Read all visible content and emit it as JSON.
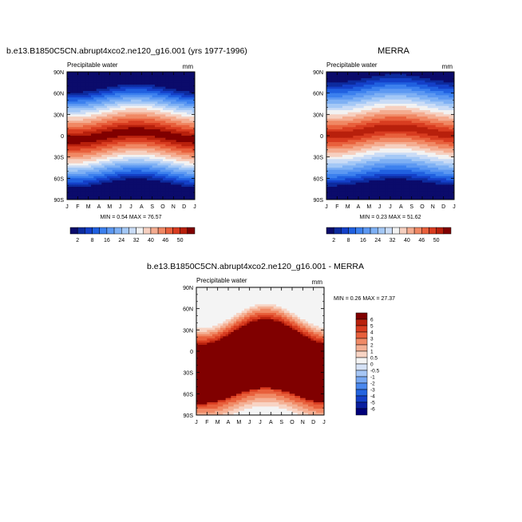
{
  "chart_data": [
    {
      "type": "heatmap",
      "title": "b.e13.B1850C5CN.abrupt4xco2.ne120_g16.001 (yrs 1977-1996)",
      "left_label": "Precipitable water",
      "right_label": "mm",
      "x": [
        "J",
        "F",
        "M",
        "A",
        "M",
        "J",
        "J",
        "A",
        "S",
        "O",
        "N",
        "D",
        "J"
      ],
      "y_ticks": [
        "90N",
        "60N",
        "30N",
        "0",
        "30S",
        "60S",
        "90S"
      ],
      "stats_text": "MIN =  0.54 MAX =  76.57",
      "min": 0.54,
      "max": 76.57,
      "colorbar": {
        "labels": [
          "2",
          "8",
          "16",
          "24",
          "32",
          "40",
          "46",
          "50"
        ]
      }
    },
    {
      "type": "heatmap",
      "title": "MERRA",
      "left_label": "Precipitable water",
      "right_label": "mm",
      "x": [
        "J",
        "F",
        "M",
        "A",
        "M",
        "J",
        "J",
        "A",
        "S",
        "O",
        "N",
        "D",
        "J"
      ],
      "y_ticks": [
        "90N",
        "60N",
        "30N",
        "0",
        "30S",
        "60S",
        "90S"
      ],
      "stats_text": "MIN =  0.23 MAX =  51.62",
      "min": 0.23,
      "max": 51.62,
      "colorbar": {
        "labels": [
          "2",
          "8",
          "16",
          "24",
          "32",
          "40",
          "46",
          "50"
        ]
      }
    },
    {
      "type": "heatmap",
      "title": "b.e13.B1850C5CN.abrupt4xco2.ne120_g16.001 - MERRA",
      "left_label": "Precipitable water",
      "right_label": "mm",
      "x": [
        "J",
        "F",
        "M",
        "A",
        "M",
        "J",
        "J",
        "A",
        "S",
        "O",
        "N",
        "D",
        "J"
      ],
      "y_ticks": [
        "90N",
        "60N",
        "30N",
        "0",
        "30S",
        "60S",
        "90S"
      ],
      "stats_text": "MIN =  0.26 MAX =  27.37",
      "min": 0.26,
      "max": 27.37,
      "colorbar": {
        "labels": [
          "6",
          "5",
          "4",
          "3",
          "2",
          "1",
          "0.5",
          "0",
          "-0.5",
          "-1",
          "-2",
          "-3",
          "-4",
          "-5",
          "-6"
        ]
      }
    }
  ],
  "palette": {
    "wet": [
      "#0b0b6b",
      "#0d2b9e",
      "#1440c8",
      "#2060e0",
      "#3c80ee",
      "#5c98f2",
      "#7eb0f4",
      "#a4c8f6",
      "#cadcf6",
      "#f2f2f2",
      "#f6d0c0",
      "#f4ac90",
      "#f08864",
      "#e8603c",
      "#d83c20",
      "#b8200c",
      "#800000"
    ],
    "diff": [
      "#00007a",
      "#0a1fa0",
      "#1440c8",
      "#2464e0",
      "#4a88ee",
      "#78a8f2",
      "#a6c6f5",
      "#d6e2f6",
      "#f4f4f4",
      "#f8d4c4",
      "#f4b094",
      "#f08a66",
      "#e8603c",
      "#d83c20",
      "#b8200c",
      "#800000"
    ]
  }
}
